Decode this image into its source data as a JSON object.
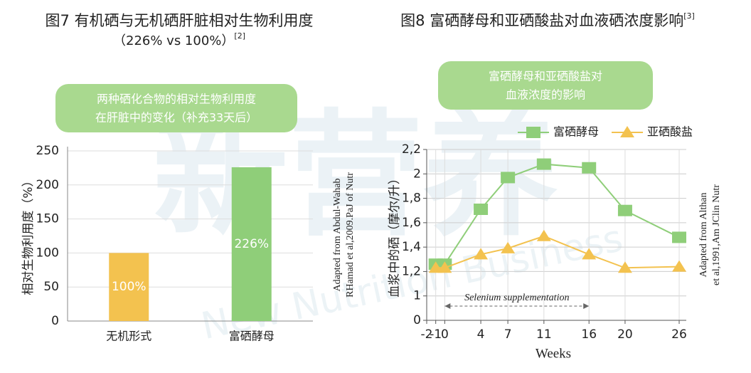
{
  "chart_data": [
    {
      "type": "bar",
      "title": "图7 有机硒与无机硒肝脏相对生物利用度",
      "subtitle": "（226% vs 100%）",
      "reference": "[2]",
      "callout": [
        "两种硒化合物的相对生物利用度",
        "在肝脏中的变化（补充33天后）"
      ],
      "y_label": "相对生物利用度（%）",
      "source": [
        "Adapted from Abdul-Wahab",
        "RHamad et al,2009.PaJ of Nutr"
      ],
      "categories": [
        "无机形式",
        "富硒酵母"
      ],
      "values": [
        100,
        226
      ],
      "value_labels": [
        "100%",
        "226%"
      ],
      "colors": [
        "#f3c24f",
        "#8fce79"
      ],
      "ylim": [
        0,
        250
      ],
      "yticks": [
        0,
        50,
        100,
        150,
        200,
        250
      ],
      "grid": true
    },
    {
      "type": "line",
      "title": "图8 富硒酵母和亚硒酸盐对血液硒浓度影响",
      "reference": "[3]",
      "callout": [
        "富硒酵母和亚硒酸盐对",
        "血液浓度的影响"
      ],
      "y_label": "血浆中的硒（摩尔/升）",
      "x_label": "Weeks",
      "source": [
        "Adapted from Althan",
        "et al,1991,Am JClin Nutr"
      ],
      "annotation": {
        "text": "Selenium supplementation",
        "x": [
          0,
          16
        ]
      },
      "x": [
        -1,
        0,
        4,
        7,
        11,
        16,
        20,
        26
      ],
      "series": [
        {
          "name": "富硒酵母",
          "color": "#8fce79",
          "marker": "square",
          "values": [
            1.26,
            1.26,
            1.71,
            1.97,
            2.08,
            2.05,
            1.7,
            1.48
          ]
        },
        {
          "name": "亚硒酸盐",
          "color": "#f3c24f",
          "marker": "triangle",
          "values": [
            1.23,
            1.23,
            1.34,
            1.39,
            1.49,
            1.34,
            1.23,
            1.24
          ]
        }
      ],
      "xlim": [
        -2,
        26
      ],
      "xticks": [
        -2,
        -1,
        0,
        4,
        7,
        11,
        16,
        20,
        26
      ],
      "ylim": [
        0,
        2.2
      ],
      "yticks": [
        0,
        1,
        {
          "value": 1.2,
          "label": "1,2"
        },
        {
          "value": 1.4,
          "label": "1,4"
        },
        {
          "value": 1.6,
          "label": "1,6"
        },
        {
          "value": 1.8,
          "label": "1,8"
        },
        2,
        {
          "value": 2.2,
          "label": "2,2"
        }
      ],
      "grid": true,
      "legend": "top-right"
    }
  ],
  "watermark": [
    "新营养",
    "New Nutrition Business"
  ]
}
